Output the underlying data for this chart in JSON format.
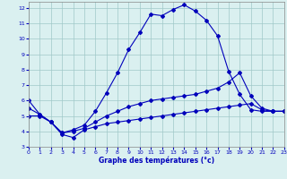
{
  "xlabel": "Graphe des températures (°c)",
  "xlim": [
    0,
    23
  ],
  "ylim": [
    3,
    12.4
  ],
  "yticks": [
    3,
    4,
    5,
    6,
    7,
    8,
    9,
    10,
    11,
    12
  ],
  "xticks": [
    0,
    1,
    2,
    3,
    4,
    5,
    6,
    7,
    8,
    9,
    10,
    11,
    12,
    13,
    14,
    15,
    16,
    17,
    18,
    19,
    20,
    21,
    22,
    23
  ],
  "background_color": "#daf0f0",
  "grid_color": "#a0c8c8",
  "line_color": "#0000bb",
  "line1_x": [
    0,
    1,
    2,
    3,
    4,
    5,
    6,
    7,
    8,
    9,
    10,
    11,
    12,
    13,
    14,
    15,
    16,
    17,
    18,
    19,
    20,
    21,
    22,
    23
  ],
  "line1_y": [
    6.0,
    5.1,
    4.6,
    3.9,
    4.1,
    4.4,
    5.3,
    6.5,
    7.8,
    9.3,
    10.4,
    11.6,
    11.5,
    11.9,
    12.2,
    11.8,
    11.2,
    10.2,
    7.9,
    6.4,
    5.4,
    5.3,
    5.3,
    5.3
  ],
  "line2_x": [
    0,
    1,
    2,
    3,
    4,
    5,
    6,
    7,
    8,
    9,
    10,
    11,
    12,
    13,
    14,
    15,
    16,
    17,
    18,
    19,
    20,
    21,
    22,
    23
  ],
  "line2_y": [
    5.0,
    5.0,
    4.6,
    3.8,
    3.6,
    4.1,
    4.3,
    4.5,
    4.6,
    4.7,
    4.8,
    4.9,
    5.0,
    5.1,
    5.2,
    5.3,
    5.4,
    5.5,
    5.6,
    5.7,
    5.8,
    5.4,
    5.3,
    5.3
  ],
  "line3_x": [
    0,
    1,
    2,
    3,
    4,
    5,
    6,
    7,
    8,
    9,
    10,
    11,
    12,
    13,
    14,
    15,
    16,
    17,
    18,
    19,
    20,
    21,
    22,
    23
  ],
  "line3_y": [
    5.5,
    5.1,
    4.6,
    3.9,
    4.0,
    4.2,
    4.6,
    5.0,
    5.3,
    5.6,
    5.8,
    6.0,
    6.1,
    6.2,
    6.3,
    6.4,
    6.6,
    6.8,
    7.2,
    7.8,
    6.3,
    5.5,
    5.3,
    5.3
  ]
}
